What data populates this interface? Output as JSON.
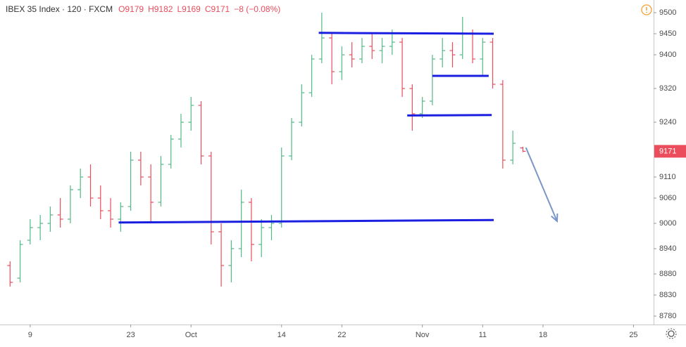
{
  "chart_data": {
    "type": "ohlc",
    "title": "IBEX 35 Index · 120 · FXCM",
    "legend_values": [
      "O9179",
      "H9182",
      "L9169",
      "C9171"
    ],
    "change": "−8 (−0.08%)",
    "open": [
      8900,
      8870,
      8960,
      8990,
      9000,
      9020,
      9010,
      9080,
      9110,
      9060,
      9030,
      9010,
      9040,
      9150,
      9110,
      9050,
      9140,
      9200,
      9240,
      9280,
      9160,
      8980,
      8900,
      8940,
      9050,
      8950,
      8990,
      9000,
      9160,
      9240,
      9310,
      9390,
      9440,
      9360,
      9400,
      9390,
      9420,
      9410,
      9420,
      9430,
      9320,
      9260,
      9290,
      9390,
      9410,
      9400,
      9450,
      9390,
      9430,
      9330,
      9150,
      9179
    ],
    "high": [
      8910,
      8960,
      9010,
      9020,
      9040,
      9060,
      9090,
      9130,
      9140,
      9090,
      9060,
      9050,
      9170,
      9170,
      9140,
      9160,
      9210,
      9260,
      9300,
      9290,
      9170,
      9000,
      8960,
      9080,
      9060,
      9010,
      9020,
      9180,
      9250,
      9330,
      9400,
      9500,
      9450,
      9420,
      9430,
      9440,
      9450,
      9440,
      9460,
      9440,
      9330,
      9300,
      9400,
      9440,
      9430,
      9490,
      9460,
      9440,
      9440,
      9340,
      9220,
      9182
    ],
    "low": [
      8850,
      8860,
      8950,
      8960,
      8980,
      8990,
      9000,
      9060,
      9040,
      9010,
      8990,
      8980,
      9030,
      9090,
      9000,
      9040,
      9130,
      9180,
      9220,
      9140,
      8950,
      8850,
      8860,
      8920,
      8910,
      8920,
      8960,
      8990,
      9150,
      9230,
      9300,
      9380,
      9330,
      9340,
      9370,
      9380,
      9390,
      9380,
      9400,
      9300,
      9220,
      9250,
      9280,
      9370,
      9370,
      9390,
      9380,
      9350,
      9320,
      9130,
      9140,
      9169
    ],
    "close": [
      8860,
      8950,
      8990,
      9000,
      9020,
      9010,
      9080,
      9110,
      9060,
      9030,
      9010,
      9040,
      9150,
      9110,
      9050,
      9140,
      9200,
      9240,
      9280,
      9160,
      8980,
      8900,
      8940,
      9050,
      8950,
      8990,
      9000,
      9160,
      9240,
      9310,
      9390,
      9440,
      9360,
      9400,
      9390,
      9420,
      9410,
      9420,
      9430,
      9320,
      9260,
      9290,
      9390,
      9410,
      9400,
      9450,
      9390,
      9430,
      9330,
      9150,
      9190,
      9171
    ],
    "up_color": "#53b987",
    "down_color": "#eb4d5c",
    "last_price": 9171,
    "xlim": [
      0,
      65
    ],
    "xticks": [
      {
        "value": 3,
        "label": "9"
      },
      {
        "value": 13,
        "label": "23"
      },
      {
        "value": 19,
        "label": "Oct"
      },
      {
        "value": 28,
        "label": "14"
      },
      {
        "value": 34,
        "label": "22"
      },
      {
        "value": 42,
        "label": "Nov"
      },
      {
        "value": 48,
        "label": "11"
      },
      {
        "value": 54,
        "label": "18"
      },
      {
        "value": 63,
        "label": "25"
      }
    ],
    "ylim": [
      8760,
      9530
    ],
    "yticks": [
      8780,
      8830,
      8880,
      8940,
      9000,
      9060,
      9110,
      9240,
      9320,
      9400,
      9450,
      9500
    ],
    "drawings": [
      {
        "x": [
          31.7,
          49.1
        ],
        "y": [
          9452,
          9450
        ],
        "color": "#1a1ee0"
      },
      {
        "x": [
          43.0,
          48.6
        ],
        "y": [
          9350,
          9350
        ],
        "color": "#1a1ee0"
      },
      {
        "x": [
          40.5,
          48.9
        ],
        "y": [
          9256,
          9257
        ],
        "color": "#1a1ee0"
      },
      {
        "x": [
          11.8,
          49.1
        ],
        "y": [
          9002,
          9008
        ],
        "color": "#1a1ee0"
      }
    ],
    "arrow": {
      "x": [
        52.3,
        55.4
      ],
      "y": [
        9180,
        9005
      ],
      "color": "#7a96c8"
    }
  }
}
